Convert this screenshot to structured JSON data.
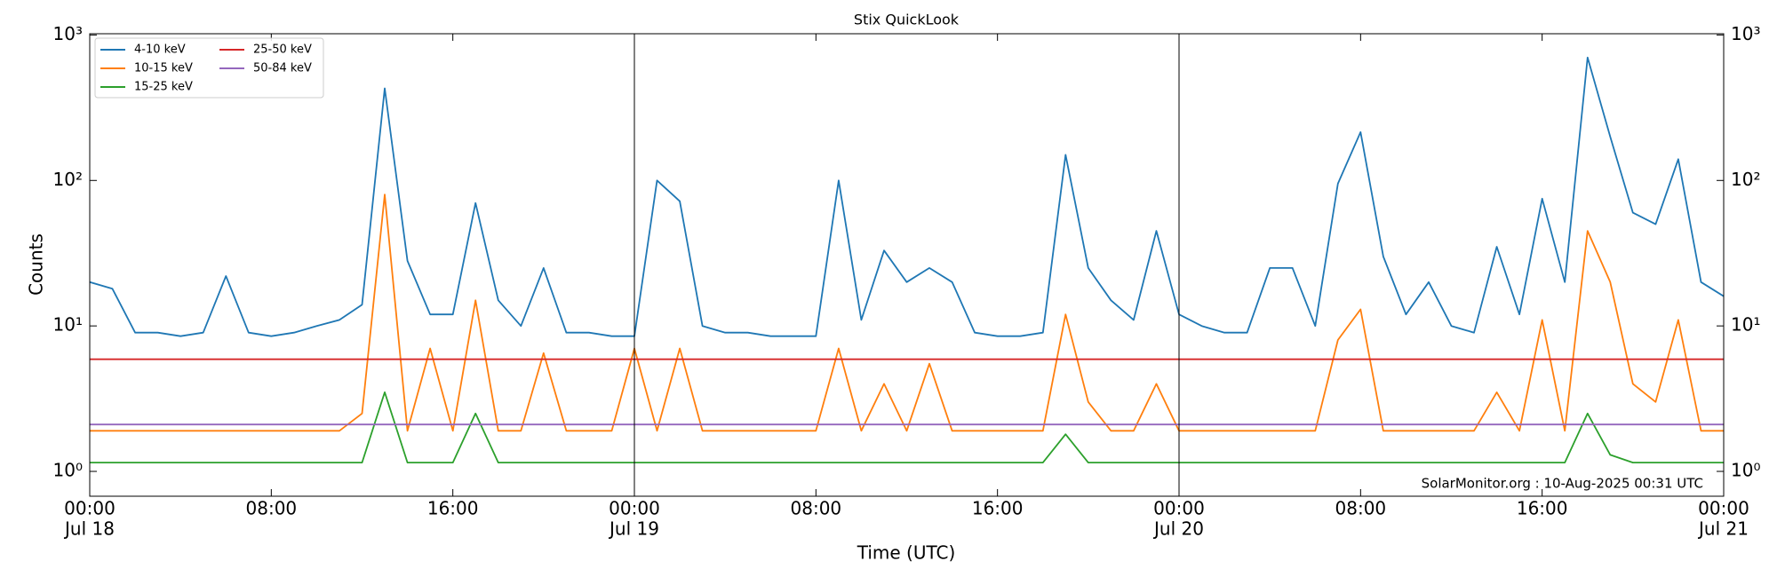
{
  "chart_data": {
    "type": "line",
    "title": "Stix QuickLook",
    "xlabel": "Time (UTC)",
    "ylabel": "Counts",
    "annotation": "SolarMonitor.org : 10-Aug-2025 00:31 UTC",
    "log_y": true,
    "legend_loc": "upper left",
    "xlim": [
      "Jul 18 00:00",
      "Jul 21 00:00"
    ],
    "xticks": [
      {
        "value": "Jul 18 00:00",
        "label": "00:00",
        "date": "Jul 18"
      },
      {
        "value": "Jul 18 08:00",
        "label": "08:00"
      },
      {
        "value": "Jul 18 16:00",
        "label": "16:00"
      },
      {
        "value": "Jul 19 00:00",
        "label": "00:00",
        "date": "Jul 19"
      },
      {
        "value": "Jul 19 08:00",
        "label": "08:00"
      },
      {
        "value": "Jul 19 16:00",
        "label": "16:00"
      },
      {
        "value": "Jul 20 00:00",
        "label": "00:00",
        "date": "Jul 20"
      },
      {
        "value": "Jul 20 08:00",
        "label": "08:00"
      },
      {
        "value": "Jul 20 16:00",
        "label": "16:00"
      },
      {
        "value": "Jul 21 00:00",
        "label": "00:00",
        "date": "Jul 21"
      }
    ],
    "ylim": [
      0.675,
      1020
    ],
    "yticks": [
      {
        "value": 1,
        "label": "10⁰"
      },
      {
        "value": 10,
        "label": "10¹"
      },
      {
        "value": 100,
        "label": "10²"
      },
      {
        "value": 1000,
        "label": "10³"
      }
    ],
    "x": [
      "Jul 18 00:00",
      "Jul 18 01:00",
      "Jul 18 02:00",
      "Jul 18 03:00",
      "Jul 18 04:00",
      "Jul 18 05:00",
      "Jul 18 06:00",
      "Jul 18 07:00",
      "Jul 18 08:00",
      "Jul 18 09:00",
      "Jul 18 10:00",
      "Jul 18 11:00",
      "Jul 18 12:00",
      "Jul 18 13:00",
      "Jul 18 14:00",
      "Jul 18 15:00",
      "Jul 18 16:00",
      "Jul 18 17:00",
      "Jul 18 18:00",
      "Jul 18 19:00",
      "Jul 18 20:00",
      "Jul 18 21:00",
      "Jul 18 22:00",
      "Jul 18 23:00",
      "Jul 19 00:00",
      "Jul 19 01:00",
      "Jul 19 02:00",
      "Jul 19 03:00",
      "Jul 19 04:00",
      "Jul 19 05:00",
      "Jul 19 06:00",
      "Jul 19 07:00",
      "Jul 19 08:00",
      "Jul 19 09:00",
      "Jul 19 10:00",
      "Jul 19 11:00",
      "Jul 19 12:00",
      "Jul 19 13:00",
      "Jul 19 14:00",
      "Jul 19 15:00",
      "Jul 19 16:00",
      "Jul 19 17:00",
      "Jul 19 18:00",
      "Jul 19 19:00",
      "Jul 19 20:00",
      "Jul 19 21:00",
      "Jul 19 22:00",
      "Jul 19 23:00",
      "Jul 20 00:00",
      "Jul 20 01:00",
      "Jul 20 02:00",
      "Jul 20 03:00",
      "Jul 20 04:00",
      "Jul 20 05:00",
      "Jul 20 06:00",
      "Jul 20 07:00",
      "Jul 20 08:00",
      "Jul 20 09:00",
      "Jul 20 10:00",
      "Jul 20 11:00",
      "Jul 20 12:00",
      "Jul 20 13:00",
      "Jul 20 14:00",
      "Jul 20 15:00",
      "Jul 20 16:00",
      "Jul 20 17:00",
      "Jul 20 18:00",
      "Jul 20 19:00",
      "Jul 20 20:00",
      "Jul 20 21:00",
      "Jul 20 22:00",
      "Jul 20 23:00",
      "Jul 21 00:00"
    ],
    "series": [
      {
        "name": "4-10 keV",
        "color": "#1f77b4",
        "values": [
          20,
          18,
          9,
          9,
          8.5,
          9,
          22,
          9,
          8.5,
          9,
          10,
          11,
          14,
          430,
          28,
          12,
          12,
          70,
          15,
          10,
          25,
          9,
          9,
          8.5,
          8.5,
          100,
          72,
          10,
          9,
          9,
          8.5,
          8.5,
          8.5,
          100,
          11,
          33,
          20,
          25,
          20,
          9,
          8.5,
          8.5,
          9,
          150,
          25,
          15,
          11,
          45,
          12,
          10,
          9,
          9,
          25,
          25,
          10,
          95,
          215,
          30,
          12,
          20,
          10,
          9,
          35,
          12,
          75,
          20,
          700,
          200,
          60,
          50,
          140,
          20,
          16
        ]
      },
      {
        "name": "10-15 keV",
        "color": "#ff7f0e",
        "values": [
          1.9,
          1.9,
          1.9,
          1.9,
          1.9,
          1.9,
          1.9,
          1.9,
          1.9,
          1.9,
          1.9,
          1.9,
          2.5,
          80,
          1.9,
          7,
          1.9,
          15,
          1.9,
          1.9,
          6.5,
          1.9,
          1.9,
          1.9,
          7,
          1.9,
          7,
          1.9,
          1.9,
          1.9,
          1.9,
          1.9,
          1.9,
          7,
          1.9,
          4,
          1.9,
          5.5,
          1.9,
          1.9,
          1.9,
          1.9,
          1.9,
          12,
          3,
          1.9,
          1.9,
          4,
          1.9,
          1.9,
          1.9,
          1.9,
          1.9,
          1.9,
          1.9,
          8,
          13,
          1.9,
          1.9,
          1.9,
          1.9,
          1.9,
          3.5,
          1.9,
          11,
          1.9,
          45,
          20,
          4,
          3,
          11,
          1.9,
          1.9
        ]
      },
      {
        "name": "15-25 keV",
        "color": "#2ca02c",
        "values": [
          1.15,
          1.15,
          1.15,
          1.15,
          1.15,
          1.15,
          1.15,
          1.15,
          1.15,
          1.15,
          1.15,
          1.15,
          1.15,
          3.5,
          1.15,
          1.15,
          1.15,
          2.5,
          1.15,
          1.15,
          1.15,
          1.15,
          1.15,
          1.15,
          1.15,
          1.15,
          1.15,
          1.15,
          1.15,
          1.15,
          1.15,
          1.15,
          1.15,
          1.15,
          1.15,
          1.15,
          1.15,
          1.15,
          1.15,
          1.15,
          1.15,
          1.15,
          1.15,
          1.8,
          1.15,
          1.15,
          1.15,
          1.15,
          1.15,
          1.15,
          1.15,
          1.15,
          1.15,
          1.15,
          1.15,
          1.15,
          1.15,
          1.15,
          1.15,
          1.15,
          1.15,
          1.15,
          1.15,
          1.15,
          1.15,
          1.15,
          2.5,
          1.3,
          1.15,
          1.15,
          1.15,
          1.15,
          1.15
        ]
      },
      {
        "name": "25-50 keV",
        "color": "#d62728",
        "values": [
          5.9,
          5.9,
          5.9,
          5.9,
          5.9,
          5.9,
          5.9,
          5.9,
          5.9,
          5.9,
          5.9,
          5.9,
          5.9,
          5.9,
          5.9,
          5.9,
          5.9,
          5.9,
          5.9,
          5.9,
          5.9,
          5.9,
          5.9,
          5.9,
          5.9,
          5.9,
          5.9,
          5.9,
          5.9,
          5.9,
          5.9,
          5.9,
          5.9,
          5.9,
          5.9,
          5.9,
          5.9,
          5.9,
          5.9,
          5.9,
          5.9,
          5.9,
          5.9,
          5.9,
          5.9,
          5.9,
          5.9,
          5.9,
          5.9,
          5.9,
          5.9,
          5.9,
          5.9,
          5.9,
          5.9,
          5.9,
          5.9,
          5.9,
          5.9,
          5.9,
          5.9,
          5.9,
          5.9,
          5.9,
          5.9,
          5.9,
          5.9,
          5.9,
          5.9,
          5.9,
          5.9,
          5.9,
          5.9
        ]
      },
      {
        "name": "50-84 keV",
        "color": "#9467bd",
        "values": [
          2.1,
          2.1,
          2.1,
          2.1,
          2.1,
          2.1,
          2.1,
          2.1,
          2.1,
          2.1,
          2.1,
          2.1,
          2.1,
          2.1,
          2.1,
          2.1,
          2.1,
          2.1,
          2.1,
          2.1,
          2.1,
          2.1,
          2.1,
          2.1,
          2.1,
          2.1,
          2.1,
          2.1,
          2.1,
          2.1,
          2.1,
          2.1,
          2.1,
          2.1,
          2.1,
          2.1,
          2.1,
          2.1,
          2.1,
          2.1,
          2.1,
          2.1,
          2.1,
          2.1,
          2.1,
          2.1,
          2.1,
          2.1,
          2.1,
          2.1,
          2.1,
          2.1,
          2.1,
          2.1,
          2.1,
          2.1,
          2.1,
          2.1,
          2.1,
          2.1,
          2.1,
          2.1,
          2.1,
          2.1,
          2.1,
          2.1,
          2.1,
          2.1,
          2.1,
          2.1,
          2.1,
          2.1,
          2.1
        ]
      }
    ]
  }
}
